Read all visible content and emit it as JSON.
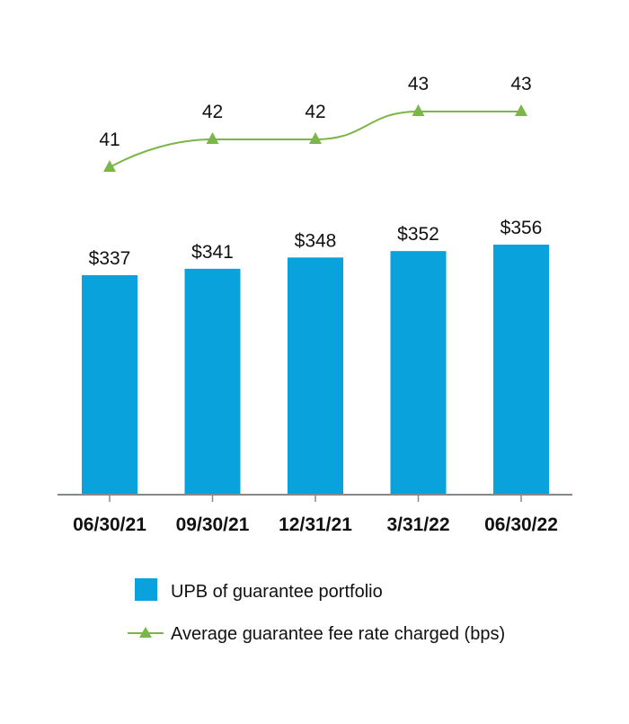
{
  "colors": {
    "bar": "#0aa2dc",
    "line": "#7ab648",
    "axis": "#888888",
    "text": "#111111"
  },
  "chart_data": {
    "type": "bar",
    "categories": [
      "06/30/21",
      "09/30/21",
      "12/31/21",
      "3/31/22",
      "06/30/22"
    ],
    "series": [
      {
        "name": "UPB of guarantee portfolio",
        "type": "bar",
        "values": [
          337,
          341,
          348,
          352,
          356
        ],
        "labels": [
          "$337",
          "$341",
          "$348",
          "$352",
          "$356"
        ]
      },
      {
        "name": "Average guarantee fee rate charged (bps)",
        "type": "line",
        "marker": "triangle",
        "values": [
          41,
          42,
          42,
          43,
          43
        ],
        "labels": [
          "41",
          "42",
          "42",
          "43",
          "43"
        ]
      }
    ],
    "legend_position": "bottom",
    "grid": false
  }
}
